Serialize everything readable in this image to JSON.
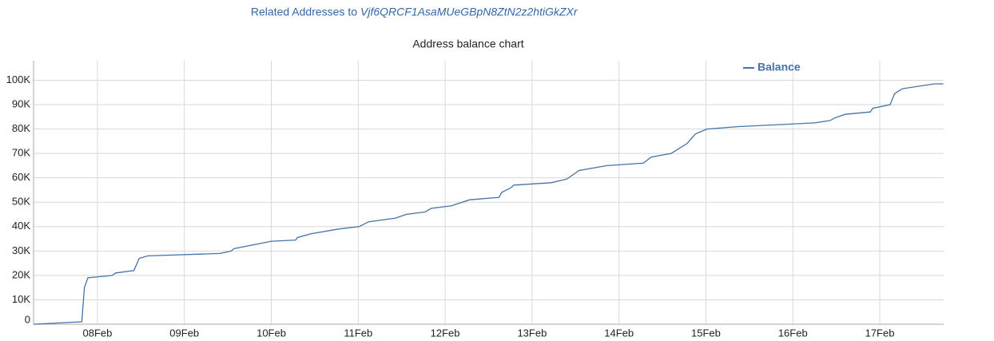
{
  "header": {
    "prefix": "Related Addresses to",
    "address": "Vjf6QRCF1AsaMUeGBpN8ZtN2z2htiGkZXr"
  },
  "chart_data": {
    "type": "line",
    "title": "Address balance chart",
    "x": [
      7.265,
      7.82,
      7.85,
      7.89,
      8.17,
      8.21,
      8.42,
      8.48,
      8.58,
      9.41,
      9.54,
      9.57,
      10.0,
      10.28,
      10.3,
      10.45,
      10.77,
      11.01,
      11.12,
      11.43,
      11.55,
      11.77,
      11.84,
      12.07,
      12.28,
      12.62,
      12.65,
      12.76,
      12.79,
      13.22,
      13.4,
      13.48,
      13.54,
      13.86,
      14.28,
      14.37,
      14.6,
      14.78,
      14.88,
      15.01,
      15.38,
      16.25,
      16.43,
      16.48,
      16.6,
      16.89,
      16.92,
      17.12,
      17.17,
      17.26,
      17.63,
      17.73
    ],
    "series": [
      {
        "name": "Balance",
        "color": "#4572a7",
        "values": [
          0,
          1000,
          15000,
          19000,
          20000,
          21000,
          22000,
          27000,
          28000,
          29000,
          30000,
          31000,
          34000,
          34500,
          35500,
          37000,
          39000,
          40000,
          42000,
          43500,
          45000,
          46000,
          47500,
          48500,
          51000,
          52000,
          54000,
          56000,
          57000,
          58000,
          59500,
          61500,
          63000,
          65000,
          66000,
          68500,
          70000,
          74000,
          78000,
          80000,
          81000,
          82500,
          83500,
          84500,
          86000,
          87000,
          88500,
          90000,
          94500,
          96500,
          98500,
          98500
        ]
      }
    ],
    "xlim": [
      7.265,
      17.735
    ],
    "xticks": [
      {
        "value": 8,
        "label": "08Feb"
      },
      {
        "value": 9,
        "label": "09Feb"
      },
      {
        "value": 10,
        "label": "10Feb"
      },
      {
        "value": 11,
        "label": "11Feb"
      },
      {
        "value": 12,
        "label": "12Feb"
      },
      {
        "value": 13,
        "label": "13Feb"
      },
      {
        "value": 14,
        "label": "14Feb"
      },
      {
        "value": 15,
        "label": "15Feb"
      },
      {
        "value": 16,
        "label": "16Feb"
      },
      {
        "value": 17,
        "label": "17Feb"
      }
    ],
    "ylim": [
      0,
      108000
    ],
    "yticks": [
      0,
      {
        "value": 10000,
        "label": "10K"
      },
      {
        "value": 20000,
        "label": "20K"
      },
      {
        "value": 30000,
        "label": "30K"
      },
      {
        "value": 40000,
        "label": "40K"
      },
      {
        "value": 50000,
        "label": "50K"
      },
      {
        "value": 60000,
        "label": "60K"
      },
      {
        "value": 70000,
        "label": "70K"
      },
      {
        "value": 80000,
        "label": "80K"
      },
      {
        "value": 90000,
        "label": "90K"
      },
      {
        "value": 100000,
        "label": "100K"
      }
    ],
    "grid": true,
    "legend": "top-right"
  }
}
